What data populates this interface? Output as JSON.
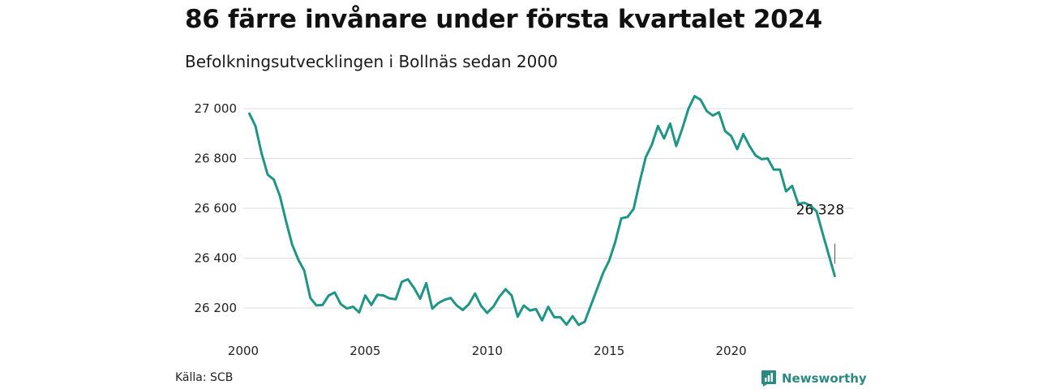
{
  "header": {
    "title": "86 färre invånare under första kvartalet 2024",
    "subtitle": "Befolkningsutvecklingen i Bollnäs sedan 2000"
  },
  "footer": {
    "source": "Källa: SCB",
    "brand": "Newsworthy",
    "brand_color": "#2a8a80"
  },
  "chart_data": {
    "type": "line",
    "title": "86 färre invånare under första kvartalet 2024",
    "subtitle": "Befolkningsutvecklingen i Bollnäs sedan 2000",
    "xlabel": "",
    "ylabel": "",
    "xlim": [
      2000,
      2025
    ],
    "ylim": [
      26120,
      27060
    ],
    "yticks": [
      26200,
      26400,
      26600,
      26800,
      27000
    ],
    "ytick_labels": [
      "26 200",
      "26 400",
      "26 600",
      "26 800",
      "27 000"
    ],
    "xticks": [
      2000,
      2005,
      2010,
      2015,
      2020
    ],
    "xtick_labels": [
      "2000",
      "2005",
      "2010",
      "2015",
      "2020"
    ],
    "grid": "horizontal",
    "line_color": "#1e9585",
    "end_label": "26 328",
    "series": [
      {
        "x": [
          2000.25,
          2000.5,
          2000.75,
          2001.0,
          2001.25,
          2001.5,
          2001.75,
          2002.0,
          2002.25,
          2002.5,
          2002.75,
          2003.0,
          2003.25,
          2003.5,
          2003.75,
          2004.0,
          2004.25,
          2004.5,
          2004.75,
          2005.0,
          2005.25,
          2005.5,
          2005.75,
          2006.0,
          2006.25,
          2006.5,
          2006.75,
          2007.0,
          2007.25,
          2007.5,
          2007.75,
          2008.0,
          2008.25,
          2008.5,
          2008.75,
          2009.0,
          2009.25,
          2009.5,
          2009.75,
          2010.0,
          2010.25,
          2010.5,
          2010.75,
          2011.0,
          2011.25,
          2011.5,
          2011.75,
          2012.0,
          2012.25,
          2012.5,
          2012.75,
          2013.0,
          2013.25,
          2013.5,
          2013.75,
          2014.0,
          2014.25,
          2014.5,
          2014.75,
          2015.0,
          2015.25,
          2015.5,
          2015.75,
          2016.0,
          2016.25,
          2016.5,
          2016.75,
          2017.0,
          2017.25,
          2017.5,
          2017.75,
          2018.0,
          2018.25,
          2018.5,
          2018.75,
          2019.0,
          2019.25,
          2019.5,
          2019.75,
          2020.0,
          2020.25,
          2020.5,
          2020.75,
          2021.0,
          2021.25,
          2021.5,
          2021.75,
          2022.0,
          2022.25,
          2022.5,
          2022.75,
          2023.0,
          2023.25,
          2023.5,
          2023.75,
          2024.0,
          2024.25
        ],
        "values": [
          26980,
          26930,
          26820,
          26735,
          26715,
          26650,
          26550,
          26455,
          26395,
          26350,
          26240,
          26210,
          26212,
          26250,
          26262,
          26215,
          26198,
          26205,
          26182,
          26250,
          26212,
          26253,
          26250,
          26238,
          26235,
          26305,
          26315,
          26280,
          26237,
          26300,
          26197,
          26220,
          26233,
          26240,
          26210,
          26192,
          26215,
          26258,
          26208,
          26180,
          26205,
          26245,
          26275,
          26250,
          26165,
          26210,
          26190,
          26195,
          26150,
          26205,
          26163,
          26163,
          26133,
          26167,
          26132,
          26145,
          26210,
          26275,
          26340,
          26390,
          26465,
          26560,
          26565,
          26597,
          26705,
          26805,
          26855,
          26930,
          26880,
          26940,
          26850,
          26920,
          27000,
          27050,
          27035,
          26990,
          26972,
          26985,
          26910,
          26890,
          26837,
          26898,
          26850,
          26812,
          26797,
          26800,
          26755,
          26755,
          26668,
          26690,
          26618,
          26622,
          26610,
          26588,
          26500,
          26414,
          26328
        ]
      }
    ]
  }
}
